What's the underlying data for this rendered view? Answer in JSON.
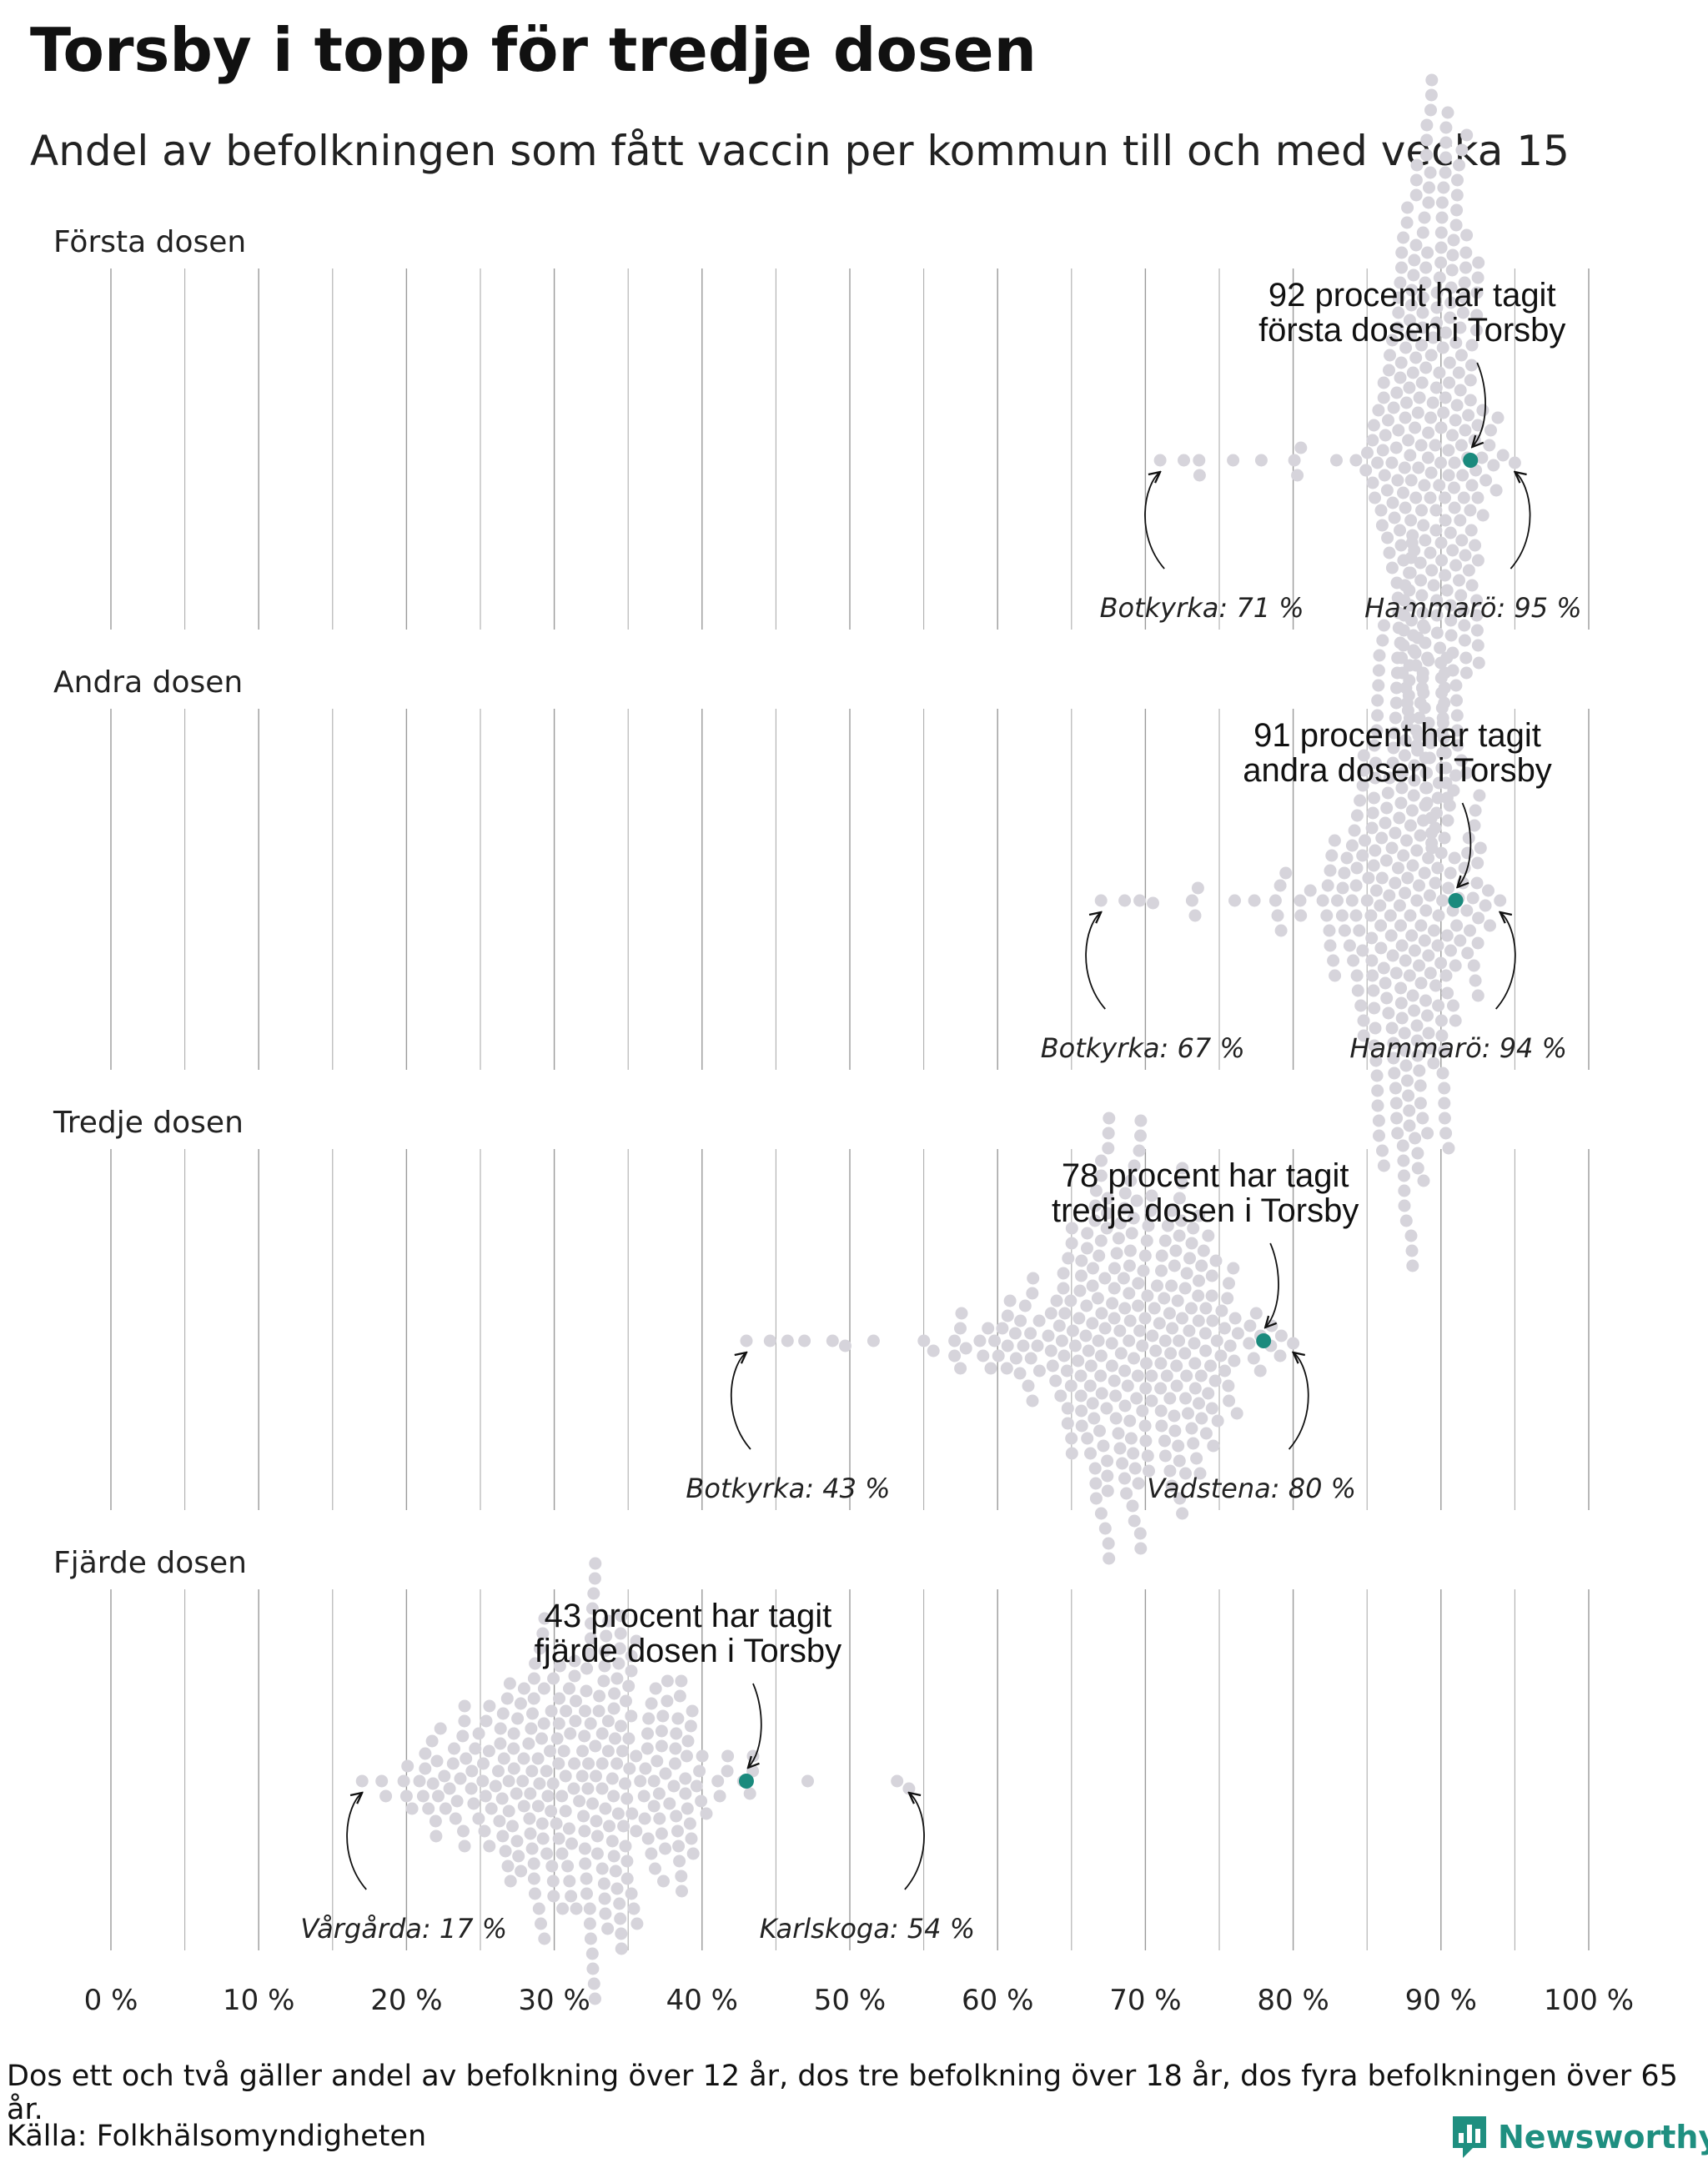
{
  "title": "Torsby i topp för tredje dosen",
  "subtitle": "Andel av befolkningen som fått vaccin per kommun till och med vecka 15",
  "footnote": "Dos ett och två gäller andel av befolkning över 12 år, dos tre befolkning över 18 år, dos fyra befolkningen över 65 år.",
  "source": "Källa: Folkhälsomyndigheten",
  "brand": "Newsworthy",
  "colors": {
    "dot": "#d6d4db",
    "highlight": "#1a8a7d",
    "gridline": "#9a9a9a",
    "brand": "#1f8f80"
  },
  "chart_data": {
    "type": "scatter",
    "subtype": "beeswarm",
    "xlabel": "",
    "ylabel": "",
    "xlim": [
      0,
      100
    ],
    "x_ticks": [
      0,
      10,
      20,
      30,
      40,
      50,
      60,
      70,
      80,
      90,
      100
    ],
    "x_tick_labels": [
      "0 %",
      "10 %",
      "20 %",
      "30 %",
      "40 %",
      "50 %",
      "60 %",
      "70 %",
      "80 %",
      "90 %",
      "100 %"
    ],
    "grid": true,
    "panels": [
      {
        "name": "Första dosen",
        "highlight": {
          "name": "Torsby",
          "value": 92,
          "label_lines": [
            "92 procent har tagit",
            "första dosen i Torsby"
          ]
        },
        "min": {
          "name": "Botkyrka",
          "value": 71,
          "label": "Botkyrka: 71 %"
        },
        "max": {
          "name": "Hammarö",
          "value": 95,
          "label": "Hammarö: 95 %"
        },
        "distribution": {
          "mean": 89.5,
          "sd": 2.0,
          "n": 290
        }
      },
      {
        "name": "Andra dosen",
        "highlight": {
          "name": "Torsby",
          "value": 91,
          "label_lines": [
            "91 procent har tagit",
            "andra dosen i Torsby"
          ]
        },
        "min": {
          "name": "Botkyrka",
          "value": 67,
          "label": "Botkyrka: 67 %"
        },
        "max": {
          "name": "Hammarö",
          "value": 94,
          "label": "Hammarö: 94 %"
        },
        "distribution": {
          "mean": 88.0,
          "sd": 2.6,
          "n": 290
        }
      },
      {
        "name": "Tredje dosen",
        "highlight": {
          "name": "Torsby",
          "value": 78,
          "label_lines": [
            "78 procent har tagit",
            "tredje dosen i Torsby"
          ]
        },
        "min": {
          "name": "Botkyrka",
          "value": 43,
          "label": "Botkyrka: 43 %"
        },
        "max": {
          "name": "Vadstena",
          "value": 80,
          "label": "Vadstena: 80 %"
        },
        "distribution": {
          "mean": 69.0,
          "sd": 4.5,
          "n": 290
        }
      },
      {
        "name": "Fjärde dosen",
        "highlight": {
          "name": "Torsby",
          "value": 43,
          "label_lines": [
            "43 procent har tagit",
            "fjärde dosen i Torsby"
          ]
        },
        "min": {
          "name": "Vårgårda",
          "value": 17,
          "label": "Vårgårda: 17 %"
        },
        "max": {
          "name": "Karlskoga",
          "value": 54,
          "label": "Karlskoga: 54 %"
        },
        "distribution": {
          "mean": 32.0,
          "sd": 4.8,
          "n": 290
        }
      }
    ]
  }
}
